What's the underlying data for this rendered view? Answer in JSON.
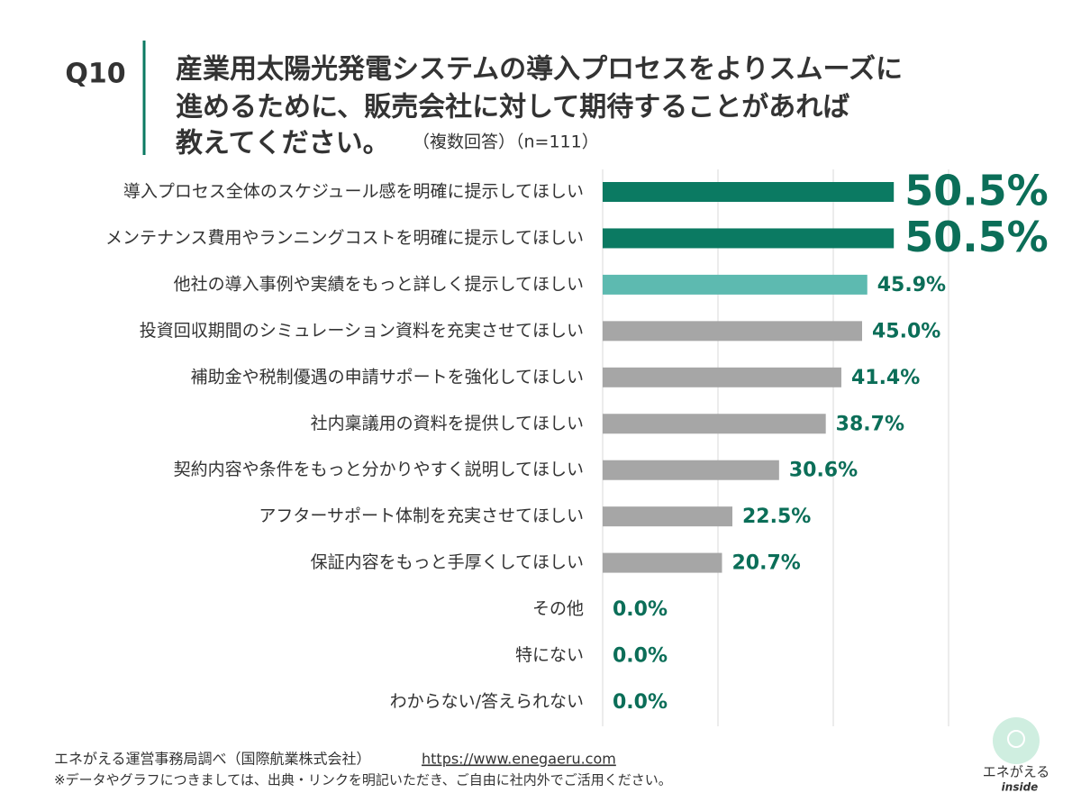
{
  "chart_data": {
    "type": "bar",
    "orientation": "horizontal",
    "question_label": "Q10",
    "title_lines": [
      "産業用太陽光発電システムの導入プロセスをよりスムーズに",
      "進めるために、販売会社に対して期待することがあれば",
      "教えてください。"
    ],
    "subtitle": "（複数回答）（n=111）",
    "categories": [
      "導入プロセス全体のスケジュール感を明確に提示してほしい",
      "メンテナンス費用やランニングコストを明確に提示してほしい",
      "他社の導入事例や実績をもっと詳しく提示してほしい",
      "投資回収期間のシミュレーション資料を充実させてほしい",
      "補助金や税制優遇の申請サポートを強化してほしい",
      "社内稟議用の資料を提供してほしい",
      "契約内容や条件をもっと分かりやすく説明してほしい",
      "アフターサポート体制を充実させてほしい",
      "保証内容をもっと手厚くしてほしい",
      "その他",
      "特にない",
      "わからない/答えられない"
    ],
    "values": [
      50.5,
      50.5,
      45.9,
      45.0,
      41.4,
      38.7,
      30.6,
      22.5,
      20.7,
      0.0,
      0.0,
      0.0
    ],
    "value_labels": [
      "50.5%",
      "50.5%",
      "45.9%",
      "45.0%",
      "41.4%",
      "38.7%",
      "30.6%",
      "22.5%",
      "20.7%",
      "0.0%",
      "0.0%",
      "0.0%"
    ],
    "colors": [
      "#0b7a62",
      "#0b7a62",
      "#5dbab0",
      "#a6a6a6",
      "#a6a6a6",
      "#a6a6a6",
      "#a6a6a6",
      "#a6a6a6",
      "#a6a6a6",
      "#a6a6a6",
      "#a6a6a6",
      "#a6a6a6"
    ],
    "label_color": "#0b6e58",
    "xlim": [
      0,
      60
    ],
    "xticks": [
      0,
      20,
      40,
      60
    ],
    "grid": true,
    "source": "エネがえる運営事務局調べ（国際航業株式会社）",
    "source_url": "https://www.enegaeru.com",
    "note": "※データやグラフにつきましては、出典・リンクを明記いただき、ご自由に社内外でご活用ください。",
    "logo_text": "エネがえる",
    "logo_sub": "inside"
  }
}
